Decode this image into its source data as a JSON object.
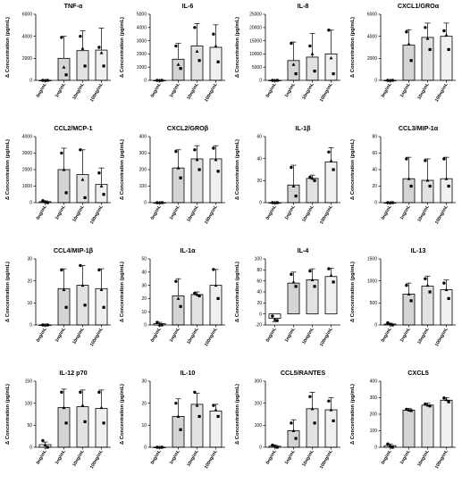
{
  "chart_data": [
    {
      "type": "bar",
      "title": "TNF-α",
      "ylabel": "Δ Concentration (pg/mL)",
      "categories": [
        "0ng/mL",
        "1ng/mL",
        "10ng/mL",
        "100ng/mL"
      ],
      "ylim": [
        0,
        6000
      ],
      "yticks": [
        0,
        2000,
        4000,
        6000
      ],
      "ytick_labels": [
        "0",
        "2000",
        "4000",
        "6000"
      ],
      "values": [
        0,
        2000,
        2700,
        2750
      ],
      "errors": [
        0,
        2000,
        1800,
        2000
      ],
      "points": [
        [
          0,
          0,
          0
        ],
        [
          3900,
          1200,
          500
        ],
        [
          4000,
          2900,
          1300
        ],
        [
          3000,
          2500,
          1300
        ]
      ]
    },
    {
      "type": "bar",
      "title": "IL-6",
      "ylabel": "Δ Concentration (pg/mL)",
      "categories": [
        "0ng/mL",
        "1ng/mL",
        "10ng/mL",
        "100ng/mL"
      ],
      "ylim": [
        0,
        5000
      ],
      "yticks": [
        0,
        1000,
        2000,
        3000,
        4000,
        5000
      ],
      "ytick_labels": [
        "0",
        "1000",
        "2000",
        "3000",
        "4000",
        "5000"
      ],
      "values": [
        0,
        1600,
        2600,
        2500
      ],
      "errors": [
        0,
        1200,
        1700,
        1700
      ],
      "points": [
        [
          0,
          0,
          0
        ],
        [
          2600,
          1200,
          900
        ],
        [
          4000,
          2200,
          1500
        ],
        [
          3500,
          2600,
          1400
        ]
      ]
    },
    {
      "type": "bar",
      "title": "IL-8",
      "ylabel": "Δ Concentration (pg/mL)",
      "categories": [
        "0ng/mL",
        "1ng/mL",
        "10ng/mL",
        "100ng/mL"
      ],
      "ylim": [
        0,
        25000
      ],
      "yticks": [
        0,
        5000,
        10000,
        15000,
        20000,
        25000
      ],
      "ytick_labels": [
        "0",
        "5000",
        "10000",
        "15000",
        "20000",
        "25000"
      ],
      "values": [
        0,
        7500,
        8800,
        10000
      ],
      "errors": [
        0,
        7000,
        9000,
        9000
      ],
      "points": [
        [
          0,
          0,
          0
        ],
        [
          14000,
          6000,
          2500
        ],
        [
          13000,
          10000,
          3500
        ],
        [
          19000,
          8500,
          2500
        ]
      ]
    },
    {
      "type": "bar",
      "title": "CXCL1/GROα",
      "ylabel": "Δ Concentration (pg/mL)",
      "categories": [
        "0ng/mL",
        "1ng/mL",
        "10ng/mL",
        "100ng/mL"
      ],
      "ylim": [
        0,
        6000
      ],
      "yticks": [
        0,
        2000,
        4000,
        6000
      ],
      "ytick_labels": [
        "0",
        "2000",
        "4000",
        "6000"
      ],
      "values": [
        0,
        3200,
        3900,
        4000
      ],
      "errors": [
        0,
        1400,
        1300,
        1200
      ],
      "points": [
        [
          0,
          0,
          0
        ],
        [
          4400,
          3300,
          1800
        ],
        [
          4800,
          3800,
          2800
        ],
        [
          4500,
          4100,
          2800
        ]
      ]
    },
    {
      "type": "bar",
      "title": "CCL2/MCP-1",
      "ylabel": "Δ Concentration (pg/mL)",
      "categories": [
        "0ng/mL",
        "1ng/mL",
        "10ng/mL",
        "100ng/mL"
      ],
      "ylim": [
        0,
        4000
      ],
      "yticks": [
        0,
        1000,
        2000,
        3000,
        4000
      ],
      "ytick_labels": [
        "0",
        "1000",
        "2000",
        "3000",
        "4000"
      ],
      "values": [
        60,
        2000,
        1700,
        1100
      ],
      "errors": [
        50,
        1300,
        1500,
        1000
      ],
      "points": [
        [
          120,
          50,
          0
        ],
        [
          3000,
          2000,
          600
        ],
        [
          3200,
          1400,
          300
        ],
        [
          1800,
          1000,
          500
        ]
      ]
    },
    {
      "type": "bar",
      "title": "CXCL2/GROβ",
      "ylabel": "Δ Concentration (pg/mL)",
      "categories": [
        "0ng/mL",
        "1ng/mL",
        "10ng/mL",
        "100ng/mL"
      ],
      "ylim": [
        0,
        400
      ],
      "yticks": [
        0,
        100,
        200,
        300,
        400
      ],
      "ytick_labels": [
        "0",
        "100",
        "200",
        "300",
        "400"
      ],
      "values": [
        0,
        210,
        265,
        265
      ],
      "errors": [
        0,
        110,
        80,
        80
      ],
      "points": [
        [
          0,
          0,
          0
        ],
        [
          310,
          210,
          150
        ],
        [
          320,
          260,
          200
        ],
        [
          330,
          260,
          190
        ]
      ]
    },
    {
      "type": "bar",
      "title": "IL-1β",
      "ylabel": "Δ Concentration (pg/mL)",
      "categories": [
        "0ng/mL",
        "1ng/mL",
        "10ng/mL",
        "100ng/mL"
      ],
      "ylim": [
        0,
        60
      ],
      "yticks": [
        0,
        20,
        40,
        60
      ],
      "ytick_labels": [
        "0",
        "20",
        "40",
        "60"
      ],
      "values": [
        0,
        16,
        22,
        37
      ],
      "errors": [
        0,
        18,
        3,
        13
      ],
      "points": [
        [
          0,
          0,
          0
        ],
        [
          32,
          15,
          6
        ],
        [
          23,
          22,
          20
        ],
        [
          46,
          38,
          30
        ]
      ]
    },
    {
      "type": "bar",
      "title": "CCL3/MIP-1α",
      "ylabel": "Δ Concentration (pg/mL)",
      "categories": [
        "0ng/mL",
        "1ng/mL",
        "10ng/mL",
        "100ng/mL"
      ],
      "ylim": [
        0,
        80
      ],
      "yticks": [
        0,
        20,
        40,
        60,
        80
      ],
      "ytick_labels": [
        "0",
        "20",
        "40",
        "60",
        "80"
      ],
      "values": [
        0,
        29,
        27,
        29
      ],
      "errors": [
        0,
        26,
        26,
        26
      ],
      "points": [
        [
          0,
          0,
          0
        ],
        [
          53,
          29,
          20
        ],
        [
          51,
          27,
          20
        ],
        [
          53,
          29,
          20
        ]
      ]
    },
    {
      "type": "bar",
      "title": "CCL4/MIP-1β",
      "ylabel": "Δ Concentration (pg/mL)",
      "categories": [
        "0ng/mL",
        "1ng/mL",
        "10ng/mL",
        "100ng/mL"
      ],
      "ylim": [
        0,
        30
      ],
      "yticks": [
        0,
        10,
        20,
        30
      ],
      "ytick_labels": [
        "0",
        "10",
        "20",
        "30"
      ],
      "values": [
        0,
        16.5,
        18,
        16.5
      ],
      "errors": [
        0,
        9,
        9,
        9
      ],
      "points": [
        [
          0,
          0,
          0
        ],
        [
          25,
          16,
          8
        ],
        [
          27,
          18,
          9
        ],
        [
          25,
          16,
          8
        ]
      ]
    },
    {
      "type": "bar",
      "title": "IL-1α",
      "ylabel": "Δ Concentration (pg/mL)",
      "categories": [
        "0ng/mL",
        "1ng/mL",
        "10ng/mL",
        "100ng/mL"
      ],
      "ylim": [
        0,
        50
      ],
      "yticks": [
        0,
        10,
        20,
        30,
        40,
        50
      ],
      "ytick_labels": [
        "0",
        "10",
        "20",
        "30",
        "40",
        "50"
      ],
      "values": [
        1,
        22,
        23,
        30
      ],
      "errors": [
        1,
        13,
        2,
        12
      ],
      "points": [
        [
          2,
          0,
          0
        ],
        [
          33,
          20,
          14
        ],
        [
          24,
          23,
          22
        ],
        [
          42,
          30,
          20
        ]
      ]
    },
    {
      "type": "bar",
      "title": "IL-4",
      "ylabel": "Δ Concentration (pg/mL)",
      "categories": [
        "0ng/mL",
        "1ng/mL",
        "10ng/mL",
        "100ng/mL"
      ],
      "ylim": [
        -20,
        100
      ],
      "yticks": [
        -20,
        0,
        20,
        40,
        60,
        80,
        100
      ],
      "ytick_labels": [
        "-20",
        "0",
        "20",
        "40",
        "60",
        "80",
        "100"
      ],
      "values": [
        -8,
        56,
        62,
        68
      ],
      "errors": [
        6,
        20,
        20,
        15
      ],
      "points": [
        [
          -4,
          -10,
          -12
        ],
        [
          72,
          58,
          50
        ],
        [
          78,
          62,
          50
        ],
        [
          82,
          70,
          58
        ]
      ]
    },
    {
      "type": "bar",
      "title": "IL-13",
      "ylabel": "Δ Concentration (pg/mL)",
      "categories": [
        "0ng/mL",
        "1ng/mL",
        "10ng/mL",
        "100ng/mL"
      ],
      "ylim": [
        0,
        1500
      ],
      "yticks": [
        0,
        500,
        1000,
        1500
      ],
      "ytick_labels": [
        "0",
        "500",
        "1000",
        "1500"
      ],
      "values": [
        20,
        700,
        880,
        800
      ],
      "errors": [
        20,
        250,
        230,
        220
      ],
      "points": [
        [
          50,
          20,
          0
        ],
        [
          900,
          700,
          550
        ],
        [
          1050,
          900,
          750
        ],
        [
          950,
          800,
          600
        ]
      ]
    },
    {
      "type": "bar",
      "title": "IL-12 p70",
      "ylabel": "Δ Concentration (pg/mL)",
      "categories": [
        "0ng/mL",
        "1ng/mL",
        "10ng/mL",
        "100ng/mL"
      ],
      "ylim": [
        0,
        150
      ],
      "yticks": [
        0,
        50,
        100,
        150
      ],
      "ytick_labels": [
        "0",
        "50",
        "100",
        "150"
      ],
      "values": [
        6,
        90,
        92,
        88
      ],
      "errors": [
        6,
        42,
        38,
        42
      ],
      "points": [
        [
          15,
          5,
          0
        ],
        [
          125,
          90,
          55
        ],
        [
          125,
          95,
          58
        ],
        [
          125,
          90,
          55
        ]
      ]
    },
    {
      "type": "bar",
      "title": "IL-10",
      "ylabel": "Δ Concentration (pg/mL)",
      "categories": [
        "0ng/mL",
        "1ng/mL",
        "10ng/mL",
        "100ng/mL"
      ],
      "ylim": [
        0,
        30
      ],
      "yticks": [
        0,
        10,
        20,
        30
      ],
      "ytick_labels": [
        "0",
        "10",
        "20",
        "30"
      ],
      "values": [
        0,
        14,
        19.5,
        16.5
      ],
      "errors": [
        0,
        8,
        5,
        3
      ],
      "points": [
        [
          0,
          0,
          0
        ],
        [
          20,
          14,
          8
        ],
        [
          25,
          19,
          14
        ],
        [
          19,
          17,
          14
        ]
      ]
    },
    {
      "type": "bar",
      "title": "CCL5/RANTES",
      "ylabel": "Δ Concentration (pg/mL)",
      "categories": [
        "0ng/mL",
        "1ng/mL",
        "10ng/mL",
        "100ng/mL"
      ],
      "ylim": [
        0,
        300
      ],
      "yticks": [
        0,
        100,
        200,
        300
      ],
      "ytick_labels": [
        "0",
        "100",
        "200",
        "300"
      ],
      "values": [
        5,
        75,
        175,
        170
      ],
      "errors": [
        5,
        50,
        75,
        55
      ],
      "points": [
        [
          10,
          5,
          0
        ],
        [
          110,
          75,
          40
        ],
        [
          230,
          175,
          110
        ],
        [
          210,
          170,
          120
        ]
      ]
    },
    {
      "type": "bar",
      "title": "CXCL5",
      "ylabel": "Δ Concentration (pg/mL)",
      "categories": [
        "0ng/mL",
        "1ng/mL",
        "10ng/mL",
        "100ng/mL"
      ],
      "ylim": [
        0,
        400
      ],
      "yticks": [
        0,
        100,
        200,
        300,
        400
      ],
      "ytick_labels": [
        "0",
        "100",
        "200",
        "300",
        "400"
      ],
      "values": [
        10,
        225,
        255,
        285
      ],
      "errors": [
        10,
        10,
        12,
        15
      ],
      "points": [
        [
          20,
          10,
          0
        ],
        [
          230,
          225,
          222
        ],
        [
          262,
          255,
          250
        ],
        [
          298,
          288,
          275
        ]
      ]
    }
  ],
  "colors": {
    "bar_fills": [
      "#ffffff",
      "#d4d4d4",
      "#e2e2e2",
      "#f0f0f0"
    ],
    "axis": "#000000",
    "text": "#000000"
  }
}
